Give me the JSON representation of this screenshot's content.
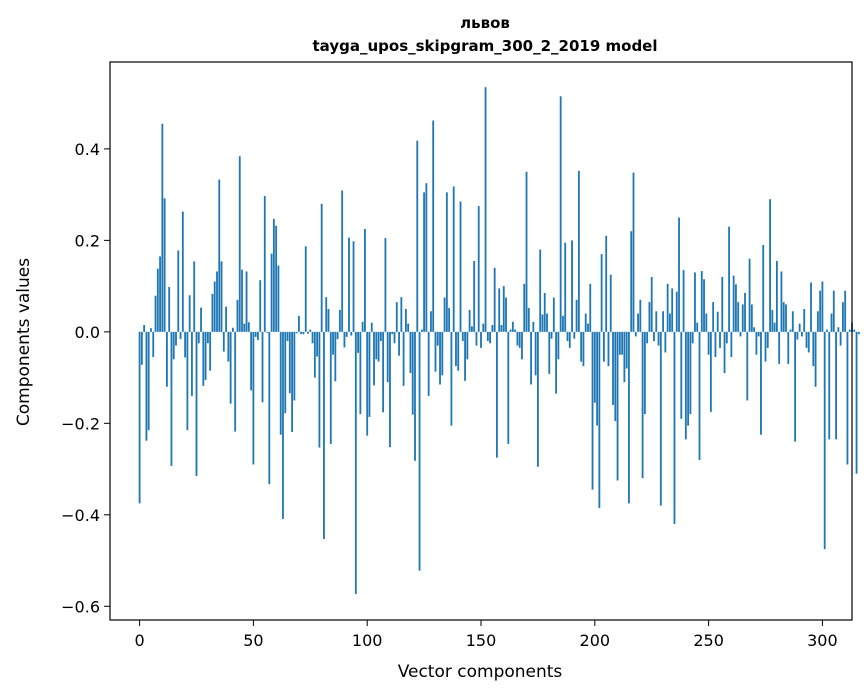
{
  "chart_data": {
    "type": "bar",
    "title": "львов",
    "subtitle": "tayga_upos_skipgram_300_2_2019 model",
    "xlabel": "Vector components",
    "ylabel": "Components values",
    "xlim": [
      -13,
      313
    ],
    "ylim": [
      -0.63,
      0.59
    ],
    "xticks": [
      0,
      50,
      100,
      150,
      200,
      250,
      300
    ],
    "yticks": [
      -0.6,
      -0.4,
      -0.2,
      0.0,
      0.2,
      0.4
    ],
    "ytick_labels": [
      "−0.6",
      "−0.4",
      "−0.2",
      "0.0",
      "0.2",
      "0.4"
    ],
    "grid": false,
    "color": "#1f77b4",
    "values": [
      -0.375,
      -0.072,
      0.015,
      -0.238,
      -0.215,
      0.008,
      -0.055,
      0.079,
      0.138,
      0.165,
      0.455,
      0.292,
      -0.12,
      0.098,
      -0.293,
      -0.06,
      -0.03,
      0.178,
      -0.016,
      0.263,
      -0.056,
      -0.215,
      0.08,
      -0.14,
      0.154,
      -0.315,
      -0.025,
      0.053,
      -0.118,
      -0.105,
      -0.025,
      -0.085,
      0.083,
      0.11,
      0.132,
      0.333,
      0.154,
      -0.043,
      0.055,
      -0.065,
      -0.157,
      0.009,
      -0.218,
      0.07,
      0.384,
      0.136,
      0.018,
      0.132,
      0.021,
      -0.128,
      -0.29,
      -0.011,
      -0.018,
      0.113,
      -0.154,
      0.297,
      -0.002,
      -0.333,
      0.171,
      0.247,
      0.232,
      0.145,
      -0.225,
      -0.409,
      -0.178,
      -0.02,
      -0.134,
      -0.219,
      -0.15,
      -0.003,
      0.035,
      -0.005,
      -0.005,
      0.187,
      -0.004,
      0.005,
      -0.025,
      -0.1,
      -0.054,
      -0.253,
      0.28,
      -0.453,
      0.076,
      0.05,
      -0.245,
      -0.05,
      -0.108,
      -0.016,
      0.048,
      0.309,
      -0.034,
      -0.011,
      0.206,
      -0.008,
      0.198,
      -0.573,
      -0.046,
      -0.18,
      0.022,
      0.225,
      -0.227,
      -0.186,
      0.02,
      -0.117,
      -0.06,
      -0.065,
      -0.02,
      -0.176,
      0.205,
      -0.11,
      -0.252,
      -0.005,
      -0.025,
      0.065,
      -0.052,
      0.076,
      -0.118,
      0.05,
      0.018,
      -0.09,
      -0.181,
      -0.282,
      0.418,
      -0.522,
      0.005,
      0.305,
      0.325,
      -0.14,
      0.045,
      0.462,
      -0.087,
      -0.03,
      -0.115,
      -0.095,
      0.075,
      0.305,
      0.052,
      -0.205,
      0.318,
      -0.075,
      -0.085,
      0.285,
      -0.02,
      -0.107,
      -0.06,
      0.048,
      0.012,
      0.155,
      -0.03,
      0.275,
      -0.035,
      0.018,
      0.535,
      -0.02,
      -0.025,
      0.015,
      0.14,
      -0.275,
      0.095,
      0.015,
      0.1,
      0.075,
      -0.245,
      0.005,
      0.022,
      0.005,
      -0.03,
      -0.035,
      -0.06,
      0.105,
      0.35,
      0.052,
      -0.115,
      0.022,
      -0.095,
      -0.295,
      0.18,
      0.038,
      0.085,
      0.04,
      -0.092,
      -0.015,
      0.075,
      -0.135,
      -0.06,
      0.515,
      0.035,
      0.195,
      -0.02,
      -0.035,
      0.2,
      -0.015,
      0.07,
      0.352,
      -0.065,
      -0.075,
      0.04,
      0.018,
      0.105,
      -0.345,
      -0.155,
      -0.205,
      -0.385,
      0.17,
      -0.065,
      0.21,
      -0.075,
      0.125,
      -0.16,
      -0.195,
      -0.325,
      -0.05,
      -0.05,
      -0.11,
      -0.08,
      -0.375,
      0.22,
      0.348,
      -0.01,
      0.04,
      0.07,
      -0.32,
      -0.18,
      -0.025,
      0.065,
      0.12,
      -0.02,
      0.045,
      -0.03,
      -0.38,
      0.045,
      -0.045,
      0.105,
      0.04,
      0.095,
      -0.42,
      0.088,
      0.25,
      -0.19,
      0.135,
      -0.235,
      -0.205,
      -0.18,
      -0.025,
      0.13,
      0.02,
      -0.28,
      0.133,
      0.115,
      0.04,
      -0.05,
      -0.175,
      0.065,
      -0.055,
      0.044,
      -0.035,
      0.12,
      -0.09,
      -0.025,
      0.23,
      -0.055,
      0.123,
      0.104,
      0.065,
      -0.01,
      0.06,
      0.085,
      -0.15,
      0.16,
      0.06,
      0.01,
      -0.05,
      -0.01,
      -0.225,
      0.19,
      -0.065,
      -0.035,
      0.29,
      0.048,
      0.02,
      0.155,
      -0.07,
      0.132,
      0.065,
      0.06,
      -0.07,
      0.005,
      0.045,
      -0.24,
      -0.017,
      0.018,
      -0.01,
      0.05,
      -0.035,
      -0.045,
      0.108,
      -0.075,
      -0.12,
      0.045,
      0.09,
      0.11,
      -0.475,
      0.005,
      -0.235,
      0.04,
      0.09,
      -0.235,
      0.01,
      -0.03,
      0.065,
      0.09,
      -0.29,
      0.005,
      0.02,
      0.005,
      -0.31,
      -0.005
    ]
  }
}
